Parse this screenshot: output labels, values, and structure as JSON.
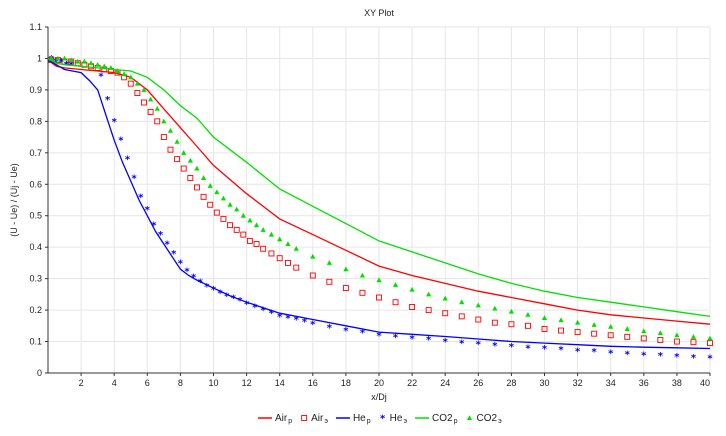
{
  "chart_data": {
    "type": "line",
    "title": "XY Plot",
    "xlabel": "x/Dj",
    "ylabel": "(U - Ue) / (Uj - Ue)",
    "xlim": [
      0,
      40
    ],
    "ylim": [
      0,
      1.1
    ],
    "xticks": [
      2,
      4,
      6,
      8,
      10,
      12,
      14,
      16,
      18,
      20,
      22,
      24,
      26,
      28,
      30,
      32,
      34,
      36,
      38,
      40
    ],
    "yticks": [
      0,
      0.1,
      0.2,
      0.3,
      0.4,
      0.5,
      0.6,
      0.7,
      0.8,
      0.9,
      1,
      1.1
    ],
    "grid": true,
    "legend_position": "bottom",
    "series": [
      {
        "name": "Air",
        "sub": "p",
        "kind": "line",
        "color": "#ff0000",
        "x": [
          0,
          0.5,
          1,
          2,
          3,
          4,
          5,
          6,
          7,
          8,
          9,
          10,
          12,
          14,
          16,
          18,
          20,
          22,
          24,
          26,
          28,
          30,
          32,
          34,
          36,
          38,
          40
        ],
        "y": [
          0.995,
          0.975,
          0.97,
          0.965,
          0.96,
          0.955,
          0.94,
          0.9,
          0.84,
          0.78,
          0.72,
          0.66,
          0.57,
          0.49,
          0.44,
          0.39,
          0.34,
          0.31,
          0.285,
          0.26,
          0.24,
          0.22,
          0.2,
          0.185,
          0.175,
          0.165,
          0.155
        ]
      },
      {
        "name": "Air",
        "sub": "э",
        "kind": "square",
        "color": "#ff0000",
        "x": [
          0.2,
          0.6,
          1,
          1.4,
          1.8,
          2.2,
          2.6,
          3,
          3.4,
          3.8,
          4.2,
          4.6,
          5,
          5.4,
          5.8,
          6.2,
          6.6,
          7,
          7.4,
          7.8,
          8.2,
          8.6,
          9,
          9.4,
          9.8,
          10.2,
          10.6,
          11,
          11.4,
          11.8,
          12.2,
          12.6,
          13,
          13.5,
          14,
          14.5,
          15,
          16,
          17,
          18,
          19,
          20,
          21,
          22,
          23,
          24,
          25,
          26,
          27,
          28,
          29,
          30,
          31,
          32,
          33,
          34,
          35,
          36,
          37,
          38,
          39,
          40
        ],
        "y": [
          0.995,
          0.995,
          0.99,
          0.99,
          0.985,
          0.98,
          0.975,
          0.97,
          0.965,
          0.96,
          0.955,
          0.94,
          0.92,
          0.89,
          0.86,
          0.83,
          0.8,
          0.75,
          0.71,
          0.68,
          0.65,
          0.62,
          0.59,
          0.56,
          0.535,
          0.51,
          0.49,
          0.47,
          0.455,
          0.44,
          0.42,
          0.41,
          0.395,
          0.38,
          0.365,
          0.35,
          0.335,
          0.31,
          0.29,
          0.27,
          0.255,
          0.24,
          0.225,
          0.21,
          0.2,
          0.19,
          0.18,
          0.17,
          0.16,
          0.155,
          0.15,
          0.14,
          0.135,
          0.13,
          0.125,
          0.12,
          0.115,
          0.11,
          0.105,
          0.1,
          0.098,
          0.095
        ]
      },
      {
        "name": "He",
        "sub": "p",
        "kind": "line",
        "color": "#0000ff",
        "x": [
          0,
          0.5,
          1,
          2,
          2.5,
          3,
          3.5,
          4,
          4.5,
          5,
          5.5,
          6,
          6.5,
          7,
          7.5,
          8,
          8.5,
          9,
          10,
          11,
          12,
          14,
          16,
          18,
          20,
          22,
          24,
          26,
          28,
          30,
          32,
          34,
          36,
          38,
          40
        ],
        "y": [
          0.995,
          0.98,
          0.965,
          0.955,
          0.93,
          0.9,
          0.82,
          0.74,
          0.67,
          0.61,
          0.55,
          0.5,
          0.45,
          0.41,
          0.37,
          0.33,
          0.31,
          0.295,
          0.27,
          0.245,
          0.225,
          0.19,
          0.17,
          0.15,
          0.13,
          0.123,
          0.116,
          0.108,
          0.1,
          0.095,
          0.09,
          0.085,
          0.082,
          0.08,
          0.078
        ]
      },
      {
        "name": "He",
        "sub": "э",
        "kind": "star",
        "color": "#0000ff",
        "x": [
          0.2,
          0.5,
          0.8,
          1.1,
          1.4,
          3.2,
          3.6,
          4,
          4.4,
          4.8,
          5.2,
          5.6,
          6,
          6.4,
          6.8,
          7.2,
          7.6,
          8,
          8.4,
          8.8,
          9.2,
          9.6,
          10,
          10.4,
          10.8,
          11.2,
          11.6,
          12,
          12.5,
          13,
          13.5,
          14,
          14.5,
          15,
          15.5,
          16,
          17,
          18,
          19,
          20,
          21,
          22,
          23,
          24,
          25,
          26,
          27,
          28,
          29,
          30,
          31,
          32,
          33,
          34,
          35,
          36,
          37,
          38,
          39,
          40
        ],
        "y": [
          1.0,
          0.99,
          0.99,
          0.98,
          0.98,
          0.945,
          0.87,
          0.8,
          0.74,
          0.68,
          0.62,
          0.56,
          0.52,
          0.47,
          0.44,
          0.41,
          0.38,
          0.35,
          0.325,
          0.305,
          0.29,
          0.275,
          0.265,
          0.255,
          0.245,
          0.238,
          0.23,
          0.22,
          0.21,
          0.2,
          0.19,
          0.18,
          0.175,
          0.17,
          0.163,
          0.155,
          0.145,
          0.135,
          0.128,
          0.12,
          0.115,
          0.11,
          0.106,
          0.1,
          0.095,
          0.092,
          0.088,
          0.084,
          0.08,
          0.078,
          0.074,
          0.07,
          0.068,
          0.064,
          0.061,
          0.058,
          0.055,
          0.052,
          0.05,
          0.047
        ]
      },
      {
        "name": "CO2",
        "sub": "p",
        "kind": "line",
        "color": "#00e000",
        "x": [
          0,
          0.5,
          1,
          2,
          3,
          4,
          5,
          6,
          7,
          8,
          9,
          10,
          12,
          14,
          16,
          18,
          20,
          22,
          24,
          26,
          28,
          30,
          32,
          34,
          36,
          38,
          40
        ],
        "y": [
          1.0,
          0.985,
          0.98,
          0.975,
          0.97,
          0.965,
          0.96,
          0.94,
          0.9,
          0.85,
          0.81,
          0.75,
          0.67,
          0.585,
          0.53,
          0.475,
          0.42,
          0.385,
          0.35,
          0.315,
          0.285,
          0.26,
          0.24,
          0.225,
          0.21,
          0.195,
          0.18
        ]
      },
      {
        "name": "CO2",
        "sub": "э",
        "kind": "triangle",
        "color": "#00e000",
        "x": [
          0.2,
          0.6,
          1,
          1.4,
          1.8,
          2.2,
          2.6,
          3,
          3.4,
          3.8,
          4.2,
          4.6,
          5,
          5.4,
          5.8,
          6.2,
          6.6,
          7,
          7.4,
          7.8,
          8.2,
          8.6,
          9,
          9.4,
          9.8,
          10.2,
          10.6,
          11,
          11.4,
          11.8,
          12.2,
          12.6,
          13,
          13.5,
          14,
          14.5,
          15,
          16,
          17,
          18,
          19,
          20,
          21,
          22,
          23,
          24,
          25,
          26,
          27,
          28,
          29,
          30,
          31,
          32,
          33,
          34,
          35,
          36,
          37,
          38,
          39,
          40
        ],
        "y": [
          1.0,
          1.0,
          1.0,
          0.995,
          0.99,
          0.99,
          0.985,
          0.98,
          0.975,
          0.97,
          0.96,
          0.95,
          0.94,
          0.92,
          0.9,
          0.87,
          0.84,
          0.8,
          0.77,
          0.735,
          0.7,
          0.675,
          0.65,
          0.62,
          0.595,
          0.575,
          0.555,
          0.535,
          0.52,
          0.5,
          0.485,
          0.47,
          0.455,
          0.44,
          0.425,
          0.41,
          0.395,
          0.37,
          0.35,
          0.33,
          0.31,
          0.295,
          0.28,
          0.265,
          0.25,
          0.237,
          0.225,
          0.215,
          0.205,
          0.195,
          0.185,
          0.175,
          0.168,
          0.16,
          0.153,
          0.147,
          0.14,
          0.133,
          0.127,
          0.12,
          0.115,
          0.11
        ]
      }
    ]
  }
}
